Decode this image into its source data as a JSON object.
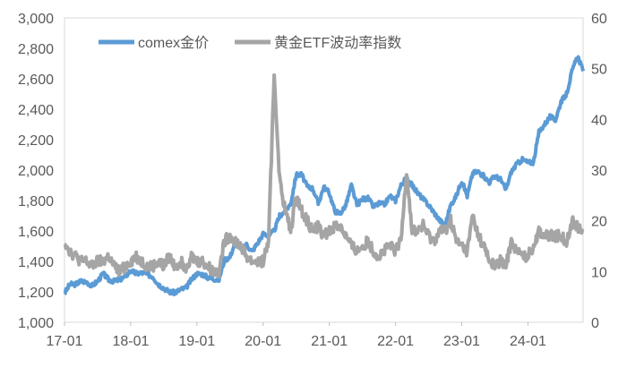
{
  "chart_data": {
    "type": "line",
    "title": "",
    "x_tick_labels": [
      "17-01",
      "18-01",
      "19-01",
      "20-01",
      "21-01",
      "22-01",
      "23-01",
      "24-01"
    ],
    "x_start": "2017-01",
    "x_end": "2024-11",
    "y_left": {
      "range": [
        1000,
        3000
      ],
      "ticks": [
        "1,000",
        "1,200",
        "1,400",
        "1,600",
        "1,800",
        "2,000",
        "2,200",
        "2,400",
        "2,600",
        "2,800",
        "3,000"
      ]
    },
    "y_right": {
      "range": [
        0,
        60
      ],
      "ticks": [
        "0",
        "10",
        "20",
        "30",
        "40",
        "50",
        "60"
      ]
    },
    "legend_position": "top",
    "grid": false,
    "series": [
      {
        "name": "comex金价",
        "axis": "left",
        "color": "#5B9BD5",
        "values": [
          1190,
          1250,
          1250,
          1270,
          1265,
          1240,
          1270,
          1320,
          1280,
          1270,
          1280,
          1300,
          1340,
          1320,
          1325,
          1315,
          1300,
          1250,
          1225,
          1200,
          1195,
          1215,
          1225,
          1280,
          1320,
          1315,
          1295,
          1285,
          1280,
          1410,
          1430,
          1530,
          1475,
          1510,
          1465,
          1520,
          1580,
          1570,
          1600,
          1700,
          1730,
          1780,
          1970,
          1970,
          1890,
          1880,
          1780,
          1890,
          1850,
          1730,
          1715,
          1770,
          1900,
          1770,
          1810,
          1815,
          1760,
          1780,
          1775,
          1830,
          1800,
          1900,
          1950,
          1900,
          1850,
          1810,
          1770,
          1720,
          1670,
          1640,
          1770,
          1830,
          1930,
          1830,
          1980,
          1990,
          1960,
          1920,
          1960,
          1940,
          1870,
          1990,
          2040,
          2070,
          2050,
          2050,
          2250,
          2300,
          2350,
          2330,
          2450,
          2500,
          2650,
          2750,
          2650
        ]
      },
      {
        "name": "黄金ETF波动率指数",
        "axis": "right",
        "color": "#A5A5A5",
        "values": [
          16,
          14,
          13,
          12,
          12,
          11,
          12,
          12,
          13,
          11,
          10,
          11,
          12,
          13,
          12,
          11,
          11,
          12,
          11,
          13,
          11,
          12,
          11,
          13,
          12,
          12,
          11,
          10,
          10,
          16,
          17,
          16,
          15,
          13,
          12,
          12,
          12,
          16,
          49,
          28,
          22,
          18,
          25,
          22,
          20,
          18,
          19,
          17,
          18,
          19,
          19,
          17,
          15,
          14,
          15,
          16,
          14,
          13,
          14,
          15,
          14,
          16,
          30,
          18,
          18,
          19,
          17,
          16,
          18,
          18,
          20,
          16,
          15,
          14,
          21,
          17,
          15,
          12,
          11,
          12,
          11,
          16,
          14,
          13,
          13,
          15,
          18,
          17,
          17,
          17,
          17,
          16,
          20,
          19,
          18
        ]
      }
    ]
  }
}
